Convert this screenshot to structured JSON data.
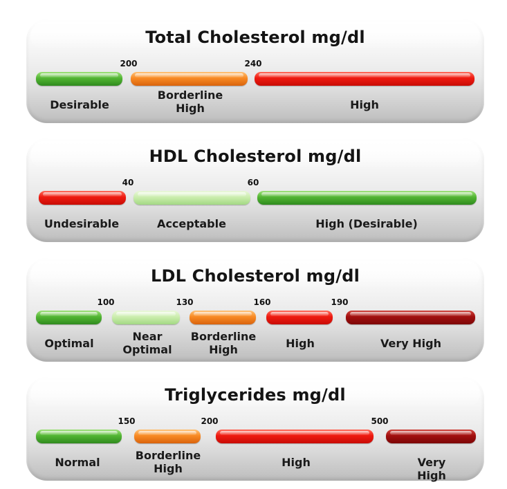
{
  "panels": [
    {
      "title": "Total Cholesterol mg/dl",
      "ticks": [
        "200",
        "240"
      ],
      "segments": [
        {
          "label": "Desirable",
          "color": "green"
        },
        {
          "label": "Borderline\nHigh",
          "color": "orange"
        },
        {
          "label": "High",
          "color": "red"
        }
      ]
    },
    {
      "title": "HDL Cholesterol mg/dl",
      "ticks": [
        "40",
        "60"
      ],
      "segments": [
        {
          "label": "Undesirable",
          "color": "red"
        },
        {
          "label": "Acceptable",
          "color": "lightgreen"
        },
        {
          "label": "High (Desirable)",
          "color": "green"
        }
      ]
    },
    {
      "title": "LDL Cholesterol mg/dl",
      "ticks": [
        "100",
        "130",
        "160",
        "190"
      ],
      "segments": [
        {
          "label": "Optimal",
          "color": "green"
        },
        {
          "label": "Near\nOptimal",
          "color": "lightgreen"
        },
        {
          "label": "Borderline\nHigh",
          "color": "orange"
        },
        {
          "label": "High",
          "color": "red"
        },
        {
          "label": "Very High",
          "color": "darkred"
        }
      ]
    },
    {
      "title": "Triglycerides mg/dl",
      "ticks": [
        "150",
        "200",
        "500"
      ],
      "segments": [
        {
          "label": "Normal",
          "color": "green"
        },
        {
          "label": "Borderline\nHigh",
          "color": "orange"
        },
        {
          "label": "High",
          "color": "red"
        },
        {
          "label": "Very High",
          "color": "darkred"
        }
      ]
    }
  ],
  "colors": {
    "green": "#52b533",
    "lightgreen": "#c8ecaa",
    "orange": "#f88a24",
    "red": "#ee1a10",
    "darkred": "#a10f0f"
  }
}
